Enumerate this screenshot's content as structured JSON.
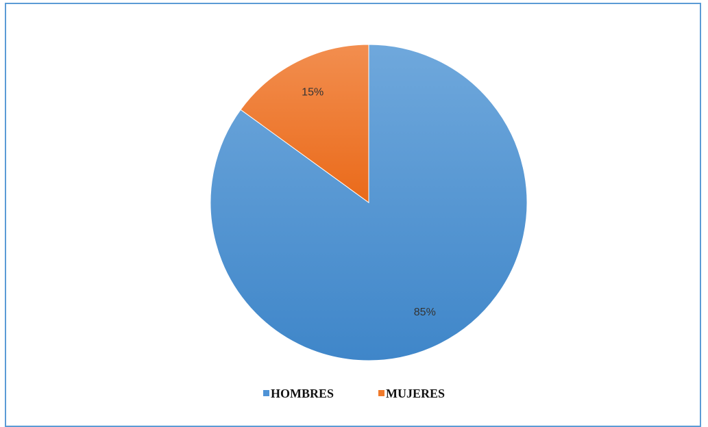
{
  "chart_data": {
    "type": "pie",
    "categories": [
      "HOMBRES",
      "MUJERES"
    ],
    "values": [
      85,
      15
    ],
    "labels": [
      "85%",
      "15%"
    ],
    "colors": [
      "#4f93d6",
      "#f07a2b"
    ],
    "title": "",
    "legend_position": "bottom-center",
    "start_angle": "12 o'clock",
    "direction": "clockwise"
  }
}
